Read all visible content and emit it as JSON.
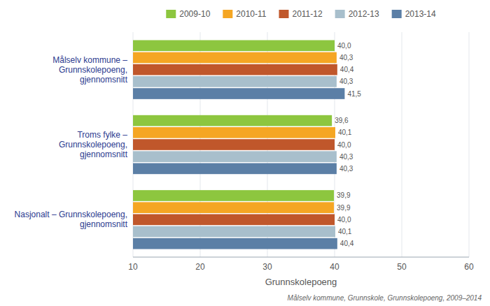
{
  "chart_data": {
    "type": "bar",
    "orientation": "horizontal",
    "categories": [
      "Målselv kommune –\nGrunnskolepoeng,\ngjennomsnitt",
      "Troms fylke –\nGrunnskolepoeng,\ngjennomsnitt",
      "Nasjonalt – Grunnskolepoeng,\ngjennomsnitt"
    ],
    "series": [
      {
        "name": "2009-10",
        "color": "#8dc63f",
        "values": [
          40.0,
          39.6,
          39.9
        ],
        "value_labels": [
          "40,0",
          "39,6",
          "39,9"
        ]
      },
      {
        "name": "2010-11",
        "color": "#f5a623",
        "values": [
          40.3,
          40.1,
          39.9
        ],
        "value_labels": [
          "40,3",
          "40,1",
          "39,9"
        ]
      },
      {
        "name": "2011-12",
        "color": "#c0572b",
        "values": [
          40.4,
          40.0,
          40.0
        ],
        "value_labels": [
          "40,4",
          "40,0",
          "40,0"
        ]
      },
      {
        "name": "2012-13",
        "color": "#a8bfcc",
        "values": [
          40.3,
          40.3,
          40.1
        ],
        "value_labels": [
          "40,3",
          "40,3",
          "40,1"
        ]
      },
      {
        "name": "2013-14",
        "color": "#5b7fa6",
        "values": [
          41.5,
          40.3,
          40.4
        ],
        "value_labels": [
          "41,5",
          "40,3",
          "40,4"
        ]
      }
    ],
    "x_label": "Grunnskolepoeng",
    "xlim": [
      10,
      60
    ],
    "xticks": [
      10,
      20,
      30,
      40,
      50,
      60
    ],
    "grid": true,
    "legend": "top",
    "data_labels": true,
    "annotations": [
      "Målselv kommune, Grunnskole, Grunnskolepoeng, 2009–2014"
    ]
  }
}
